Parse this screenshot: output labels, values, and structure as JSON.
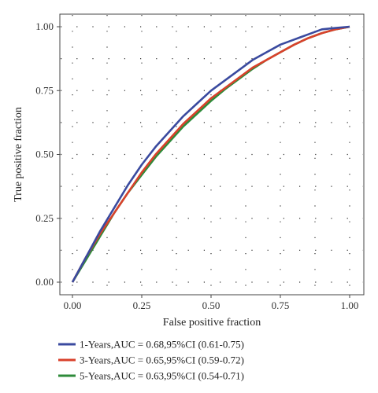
{
  "chart_data": {
    "type": "line",
    "title": "",
    "xlabel": "False positive fraction",
    "ylabel": "True positive fraction",
    "xlim": [
      0,
      1
    ],
    "ylim": [
      0,
      1
    ],
    "x_ticks": [
      "0.00",
      "0.25",
      "0.50",
      "0.75",
      "1.00"
    ],
    "y_ticks": [
      "0.00",
      "0.25",
      "0.50",
      "0.75",
      "1.00"
    ],
    "grid": "dotted",
    "legend_position": "bottom",
    "series": [
      {
        "name": "1-Years,AUC = 0.68,95%CI (0.61-0.75)",
        "color": "#3a4a9f",
        "points": [
          [
            0,
            0
          ],
          [
            0.05,
            0.1
          ],
          [
            0.1,
            0.2
          ],
          [
            0.15,
            0.29
          ],
          [
            0.2,
            0.38
          ],
          [
            0.25,
            0.46
          ],
          [
            0.3,
            0.53
          ],
          [
            0.35,
            0.59
          ],
          [
            0.4,
            0.65
          ],
          [
            0.45,
            0.7
          ],
          [
            0.5,
            0.75
          ],
          [
            0.55,
            0.79
          ],
          [
            0.6,
            0.83
          ],
          [
            0.65,
            0.87
          ],
          [
            0.7,
            0.9
          ],
          [
            0.75,
            0.93
          ],
          [
            0.8,
            0.95
          ],
          [
            0.85,
            0.97
          ],
          [
            0.9,
            0.99
          ],
          [
            0.95,
            0.995
          ],
          [
            1,
            1
          ]
        ]
      },
      {
        "name": "3-Years,AUC = 0.65,95%CI (0.59-0.72)",
        "color": "#d9412b",
        "points": [
          [
            0,
            0
          ],
          [
            0.05,
            0.1
          ],
          [
            0.1,
            0.19
          ],
          [
            0.15,
            0.27
          ],
          [
            0.2,
            0.35
          ],
          [
            0.25,
            0.43
          ],
          [
            0.3,
            0.5
          ],
          [
            0.35,
            0.56
          ],
          [
            0.4,
            0.62
          ],
          [
            0.45,
            0.67
          ],
          [
            0.5,
            0.72
          ],
          [
            0.55,
            0.76
          ],
          [
            0.6,
            0.8
          ],
          [
            0.65,
            0.84
          ],
          [
            0.7,
            0.87
          ],
          [
            0.75,
            0.9
          ],
          [
            0.8,
            0.93
          ],
          [
            0.85,
            0.955
          ],
          [
            0.9,
            0.975
          ],
          [
            0.95,
            0.99
          ],
          [
            1,
            1
          ]
        ]
      },
      {
        "name": "5-Years,AUC = 0.63,95%CI (0.54-0.71)",
        "color": "#2e8b3a",
        "points": [
          [
            0,
            0
          ],
          [
            0.05,
            0.09
          ],
          [
            0.1,
            0.18
          ],
          [
            0.15,
            0.27
          ],
          [
            0.2,
            0.35
          ],
          [
            0.25,
            0.42
          ],
          [
            0.3,
            0.49
          ],
          [
            0.35,
            0.55
          ],
          [
            0.4,
            0.61
          ],
          [
            0.45,
            0.66
          ],
          [
            0.5,
            0.71
          ],
          [
            0.55,
            0.755
          ],
          [
            0.6,
            0.795
          ],
          [
            0.65,
            0.835
          ],
          [
            0.7,
            0.87
          ],
          [
            0.75,
            0.9
          ],
          [
            0.8,
            0.93
          ],
          [
            0.85,
            0.955
          ],
          [
            0.9,
            0.975
          ],
          [
            0.95,
            0.99
          ],
          [
            1,
            1
          ]
        ]
      }
    ]
  }
}
